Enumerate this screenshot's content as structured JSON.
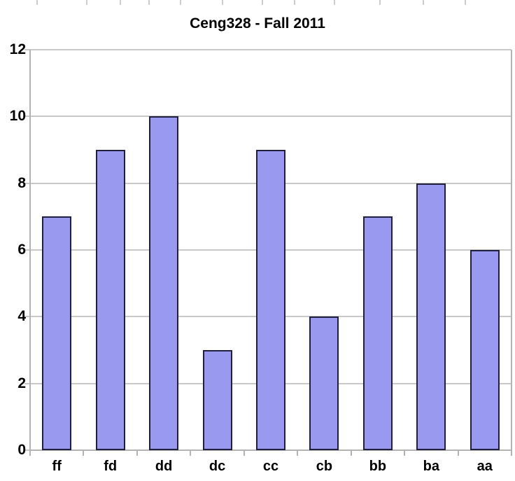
{
  "chart_data": {
    "type": "bar",
    "title": "Ceng328 - Fall 2011",
    "categories": [
      "ff",
      "fd",
      "dd",
      "dc",
      "cc",
      "cb",
      "bb",
      "ba",
      "aa"
    ],
    "values": [
      7,
      9,
      10,
      3,
      9,
      4,
      7,
      8,
      6
    ],
    "xlabel": "",
    "ylabel": "",
    "ylim": [
      0,
      12
    ],
    "ytick_step": 2,
    "yticks": [
      0,
      2,
      4,
      6,
      8,
      10,
      12
    ],
    "grid": true,
    "legend": "none",
    "colors": {
      "bar_fill": "#9999f0",
      "bar_border": "#20203e",
      "gridline": "#c8c8c8",
      "axis": "#b3b3b3",
      "text": "#000000",
      "background": "#ffffff"
    }
  }
}
